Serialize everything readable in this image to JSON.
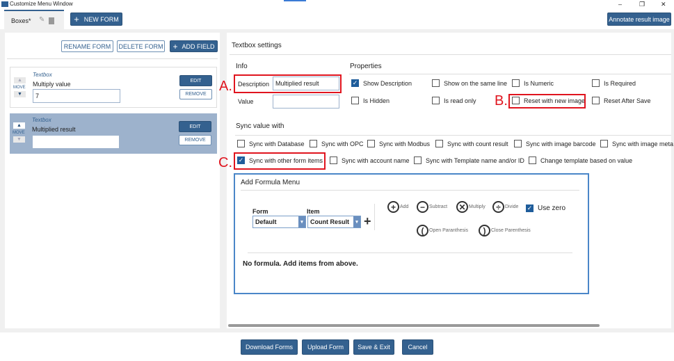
{
  "window": {
    "title": "Customize Menu Window",
    "minimize": "–",
    "maximize": "❐",
    "close": "✕"
  },
  "tabs": {
    "active": "Boxes*",
    "new_form": "NEW FORM",
    "annotate": "Annotate result image"
  },
  "left": {
    "rename": "RENAME FORM",
    "delete": "DELETE FORM",
    "add_field": "ADD FIELD",
    "fields": [
      {
        "type": "Textbox",
        "label": "Multiply value",
        "value": "7",
        "move": "MOVE",
        "edit": "EDIT",
        "remove": "REMOVE"
      },
      {
        "type": "Textbox",
        "label": "Multiplied result",
        "value": "",
        "move": "MOVE",
        "edit": "EDIT",
        "remove": "REMOVE"
      }
    ]
  },
  "settings": {
    "title": "Textbox settings",
    "info": "Info",
    "description_label": "Description",
    "description_value": "Multiplied result",
    "value_label": "Value",
    "value_value": "",
    "properties": "Properties",
    "props": [
      {
        "label": "Show Description",
        "checked": true
      },
      {
        "label": "Show on the same line",
        "checked": false
      },
      {
        "label": "Is Numeric",
        "checked": false
      },
      {
        "label": "Is Required",
        "checked": false
      },
      {
        "label": "Is Hidden",
        "checked": false
      },
      {
        "label": "Is read only",
        "checked": false
      },
      {
        "label": "Reset with new image",
        "checked": false
      },
      {
        "label": "Reset After Save",
        "checked": false
      }
    ],
    "sync_title": "Sync value with",
    "sync": [
      {
        "label": "Sync with Database",
        "checked": false
      },
      {
        "label": "Sync with OPC",
        "checked": false
      },
      {
        "label": "Sync with Modbus",
        "checked": false
      },
      {
        "label": "Sync with count result",
        "checked": false
      },
      {
        "label": "Sync with image barcode",
        "checked": false
      },
      {
        "label": "Sync with image meta",
        "checked": false
      },
      {
        "label": "Sync with other form items",
        "checked": true
      },
      {
        "label": "Sync with account name",
        "checked": false
      },
      {
        "label": "Sync with Template name and/or ID",
        "checked": false
      },
      {
        "label": "Change template based on value",
        "checked": false
      }
    ]
  },
  "annotations": {
    "a": "A.",
    "b": "B.",
    "c": "C."
  },
  "formula": {
    "title": "Add Formula Menu",
    "form_label": "Form",
    "form_value": "Default",
    "item_label": "Item",
    "item_value": "Count Result",
    "plus": "+",
    "ops": [
      {
        "icon": "+",
        "label": "Add"
      },
      {
        "icon": "−",
        "label": "Subtract"
      },
      {
        "icon": "✕",
        "label": "Multiply"
      },
      {
        "icon": "÷",
        "label": "Divide"
      },
      {
        "icon": "(",
        "label": "Open Paranthesis"
      },
      {
        "icon": ")",
        "label": "Close Parenthesis"
      }
    ],
    "use_zero": "Use zero",
    "use_zero_checked": true,
    "empty": "No formula. Add items from above."
  },
  "footer": {
    "download": "Download Forms",
    "upload": "Upload Form",
    "save": "Save & Exit",
    "cancel": "Cancel"
  }
}
